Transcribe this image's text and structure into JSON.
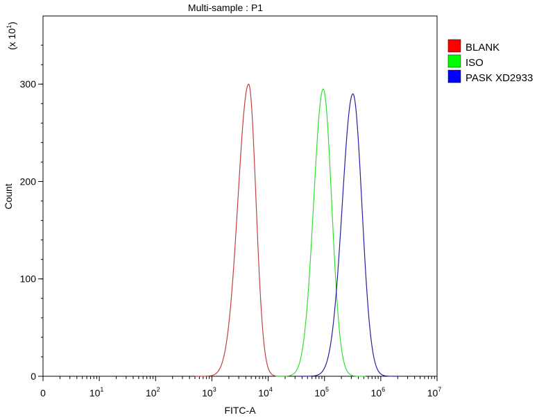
{
  "chart_data": {
    "type": "area",
    "title": "Multi-sample : P1",
    "xlabel": "FITC-A",
    "ylabel": "Count",
    "y_multiplier_label": {
      "prefix": "(x 10",
      "exp": "1",
      "suffix": ")"
    },
    "xscale": "log",
    "xlim": [
      1,
      10000000
    ],
    "ylim": [
      0,
      3700
    ],
    "grid": false,
    "legend_position": "right",
    "x_ticks": [
      {
        "base": "0",
        "exp": "",
        "value": 1
      },
      {
        "base": "10",
        "exp": "1",
        "value": 10
      },
      {
        "base": "10",
        "exp": "2",
        "value": 100
      },
      {
        "base": "10",
        "exp": "3",
        "value": 1000
      },
      {
        "base": "10",
        "exp": "4",
        "value": 10000
      },
      {
        "base": "10",
        "exp": "5",
        "value": 100000
      },
      {
        "base": "10",
        "exp": "6",
        "value": 1000000
      },
      {
        "base": "10",
        "exp": "7",
        "value": 10000000
      }
    ],
    "y_ticks": [
      {
        "label": "0",
        "value": 0
      },
      {
        "label": "100",
        "value": 1000
      },
      {
        "label": "200",
        "value": 2000
      },
      {
        "label": "300",
        "value": 3000
      }
    ],
    "series": [
      {
        "name": "BLANK",
        "color": "#c04040",
        "legend_color": "#ff0000",
        "peak_x": 4500,
        "peak_y": 3000,
        "spread_left": 0.19,
        "spread_right": 0.13
      },
      {
        "name": "ISO",
        "color": "#30e030",
        "legend_color": "#00ff00",
        "peak_x": 95000,
        "peak_y": 2950,
        "spread_left": 0.17,
        "spread_right": 0.15
      },
      {
        "name": "PASK XD2933",
        "color": "#2020a0",
        "legend_color": "#0000ff",
        "peak_x": 320000,
        "peak_y": 2900,
        "spread_left": 0.19,
        "spread_right": 0.16
      }
    ]
  }
}
